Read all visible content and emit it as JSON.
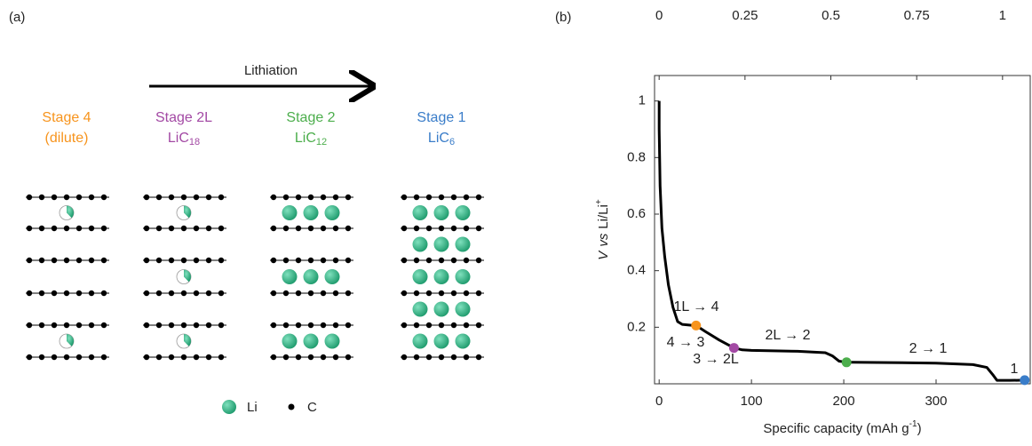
{
  "panel_a": {
    "label": "(a)",
    "arrow_label": "Lithiation",
    "stages": [
      {
        "name": "Stage 4",
        "line2": "(dilute)",
        "color": "#f7941d"
      },
      {
        "name": "Stage 2L",
        "formula": "LiC",
        "subscript": "18",
        "color": "#a349a4"
      },
      {
        "name": "Stage 2",
        "formula": "LiC",
        "subscript": "12",
        "color": "#4cae4c"
      },
      {
        "name": "Stage 1",
        "formula": "LiC",
        "subscript": "6",
        "color": "#3a7dc9"
      }
    ],
    "legend": [
      "Li",
      "C"
    ]
  },
  "chart_data": {
    "type": "line",
    "label": "(b)",
    "xlabel": {
      "text": "Specific capacity (mAh g",
      "superscript": "-1",
      "suffix": ")"
    },
    "ylabel": {
      "italic1": "V",
      "italic2": "vs",
      "text": "Li/Li",
      "superscript": "+"
    },
    "color": "#000000",
    "x": [
      0,
      0,
      1,
      3,
      6,
      10,
      15,
      20,
      25,
      35,
      40,
      50,
      65,
      81,
      90,
      100,
      150,
      180,
      188,
      195,
      203,
      210,
      250,
      300,
      340,
      355,
      362,
      366,
      380,
      396
    ],
    "values": [
      1.0,
      0.9,
      0.7,
      0.55,
      0.45,
      0.35,
      0.27,
      0.22,
      0.21,
      0.207,
      0.206,
      0.185,
      0.155,
      0.127,
      0.12,
      0.118,
      0.115,
      0.11,
      0.098,
      0.08,
      0.076,
      0.076,
      0.075,
      0.073,
      0.068,
      0.058,
      0.03,
      0.012,
      0.012,
      0.013
    ],
    "points": [
      {
        "x": 40,
        "y": 0.206,
        "color": "#f7941d"
      },
      {
        "x": 81,
        "y": 0.127,
        "color": "#a349a4"
      },
      {
        "x": 203,
        "y": 0.076,
        "color": "#4cae4c"
      },
      {
        "x": 396,
        "y": 0.013,
        "color": "#3a7dc9"
      }
    ],
    "annotations": [
      "1L → 4",
      "4 → 3",
      "3 → 2L",
      "2L → 2",
      "2 → 1",
      "1"
    ],
    "xlim": [
      -5,
      402
    ],
    "xticks": [
      0,
      100,
      200,
      300
    ],
    "x2lim": [
      -0.0134,
      1.0806
    ],
    "x2ticks": [
      0,
      0.25,
      0.5,
      0.75,
      1
    ],
    "ylim": [
      0,
      1.09
    ],
    "yticks": [
      0.2,
      0.4,
      0.6,
      0.8,
      1
    ]
  }
}
